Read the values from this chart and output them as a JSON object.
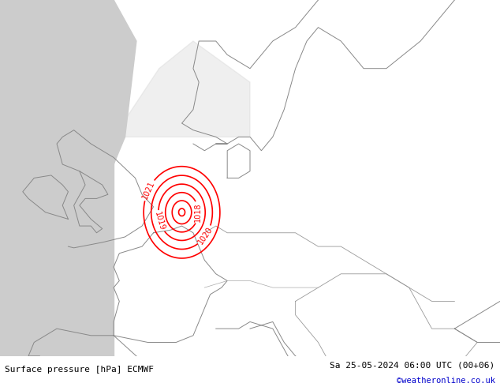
{
  "title_left": "Surface pressure [hPa] ECMWF",
  "title_right": "Sa 25-05-2024 06:00 UTC (00+06)",
  "credit": "©weatheronline.co.uk",
  "credit_color": "#0000cc",
  "background_color": "#aaddaa",
  "land_color": "#bbeeaa",
  "sea_color": "#dddddd",
  "contour_color": "#ff0000",
  "border_color": "#888888",
  "text_color": "#000000",
  "bottom_bar_color": "#ffffff",
  "bottom_bar_height": 0.08,
  "figsize": [
    6.34,
    4.9
  ],
  "dpi": 100
}
